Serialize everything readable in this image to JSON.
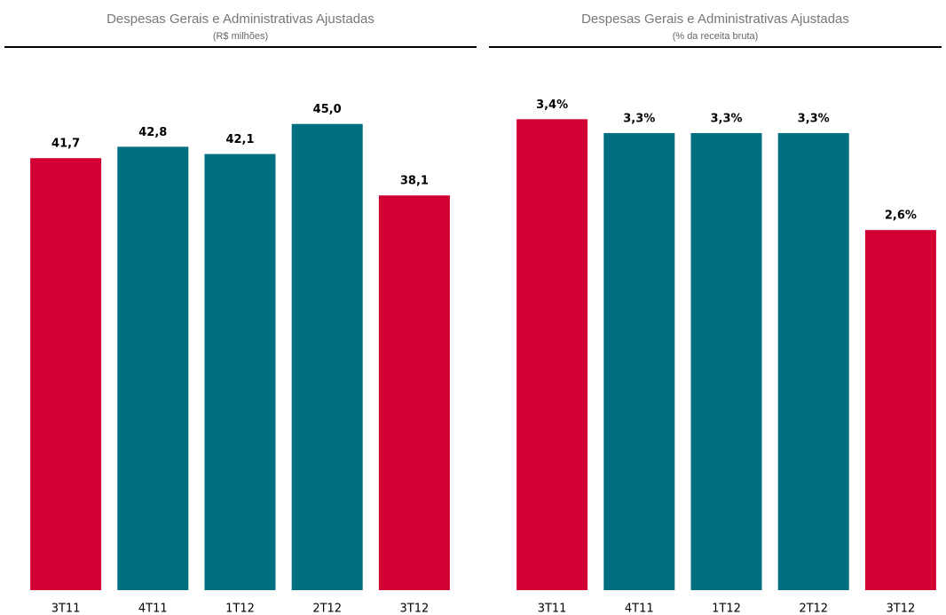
{
  "chart_data": [
    {
      "type": "bar",
      "title": "Despesas Gerais e Administrativas Ajustadas",
      "subtitle": "(R$ milhões)",
      "categories": [
        "3T11",
        "4T11",
        "1T12",
        "2T12",
        "3T12"
      ],
      "values": [
        41.7,
        42.8,
        42.1,
        45.0,
        38.1
      ],
      "value_labels": [
        "41,7",
        "42,8",
        "42,1",
        "45,0",
        "38,1"
      ],
      "colors": [
        "#d20032",
        "#006f80",
        "#006f80",
        "#006f80",
        "#d20032"
      ],
      "ylim": [
        0,
        48.4
      ]
    },
    {
      "type": "bar",
      "title": "Despesas Gerais e Administrativas Ajustadas",
      "subtitle": "(% da receita bruta)",
      "categories": [
        "3T11",
        "4T11",
        "1T12",
        "2T12",
        "3T12"
      ],
      "values": [
        3.4,
        3.3,
        3.3,
        3.3,
        2.6
      ],
      "value_labels": [
        "3,4%",
        "3,3%",
        "3,3%",
        "3,3%",
        "2,6%"
      ],
      "colors": [
        "#d20032",
        "#006f80",
        "#006f80",
        "#006f80",
        "#d20032"
      ],
      "ylim": [
        0,
        3.62
      ]
    }
  ]
}
